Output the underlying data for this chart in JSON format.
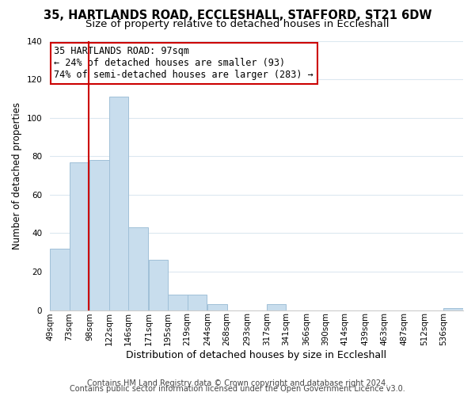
{
  "title": "35, HARTLANDS ROAD, ECCLESHALL, STAFFORD, ST21 6DW",
  "subtitle": "Size of property relative to detached houses in Eccleshall",
  "xlabel": "Distribution of detached houses by size in Eccleshall",
  "ylabel": "Number of detached properties",
  "footnote1": "Contains HM Land Registry data © Crown copyright and database right 2024.",
  "footnote2": "Contains public sector information licensed under the Open Government Licence v3.0.",
  "bin_labels": [
    "49sqm",
    "73sqm",
    "98sqm",
    "122sqm",
    "146sqm",
    "171sqm",
    "195sqm",
    "219sqm",
    "244sqm",
    "268sqm",
    "293sqm",
    "317sqm",
    "341sqm",
    "366sqm",
    "390sqm",
    "414sqm",
    "439sqm",
    "463sqm",
    "487sqm",
    "512sqm",
    "536sqm"
  ],
  "bar_values": [
    32,
    77,
    78,
    111,
    43,
    26,
    8,
    8,
    3,
    0,
    0,
    3,
    0,
    0,
    0,
    0,
    0,
    0,
    0,
    0,
    1
  ],
  "bar_color": "#c8dded",
  "vline_x": 97,
  "vline_color": "#cc0000",
  "annotation_line1": "35 HARTLANDS ROAD: 97sqm",
  "annotation_line2": "← 24% of detached houses are smaller (93)",
  "annotation_line3": "74% of semi-detached houses are larger (283) →",
  "annotation_box_color": "#ffffff",
  "annotation_box_edge_color": "#cc0000",
  "annotation_fontsize": 8.5,
  "ylim": [
    0,
    140
  ],
  "title_fontsize": 10.5,
  "subtitle_fontsize": 9.5,
  "xlabel_fontsize": 9,
  "ylabel_fontsize": 8.5,
  "tick_fontsize": 7.5,
  "footnote_fontsize": 7,
  "background_color": "#ffffff",
  "grid_color": "#dce8f0",
  "bin_width": 24
}
